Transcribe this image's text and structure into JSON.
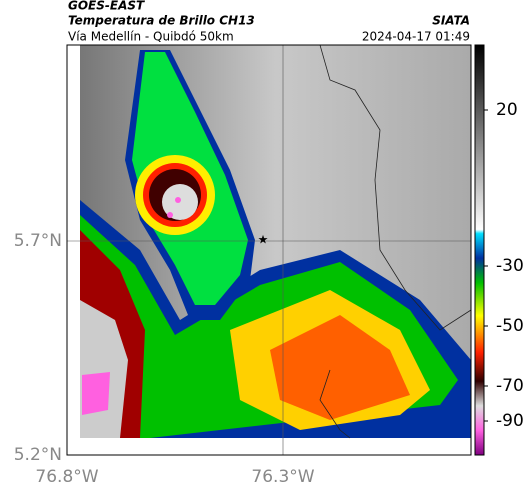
{
  "header": {
    "title": "GOES-EAST",
    "subtitle": "Temperatura de Brillo CH13",
    "source": "SIATA",
    "region": "Vía Medellín - Quibdó 50km",
    "datetime": "2024-04-17 01:49"
  },
  "axes": {
    "lat_labels": [
      "5.7°N",
      "5.2°N"
    ],
    "lon_labels": [
      "76.8°W",
      "76.3°W"
    ]
  },
  "colorbar": {
    "ticks": [
      "20",
      "-30",
      "-50",
      "-70",
      "-90"
    ]
  },
  "marker": {
    "symbol": "★"
  }
}
